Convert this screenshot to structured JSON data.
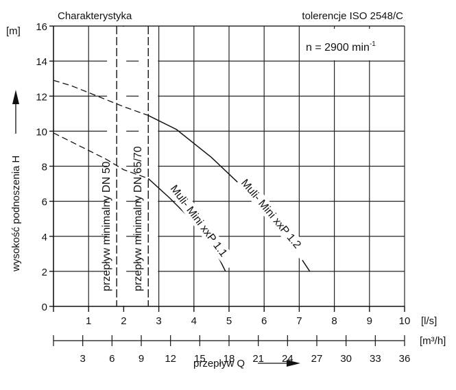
{
  "chart_data": {
    "type": "line",
    "title": "Charakterystyka",
    "tolerance_note": "tolerencje ISO 2548/C",
    "speed_label": "n = 2900 min",
    "speed_exponent": "-1",
    "ylabel": "wysokość podnoszenia H",
    "y_unit": "[m]",
    "xlabel": "przepływ Q",
    "x_unit": "[l/s]",
    "x2_unit": "[m³/h]",
    "xlim": [
      0,
      10
    ],
    "ylim": [
      0,
      16
    ],
    "x_ticks": [
      "1",
      "2",
      "3",
      "4",
      "5",
      "6",
      "7",
      "8",
      "9",
      "10"
    ],
    "y_ticks": [
      "0",
      "2",
      "4",
      "6",
      "8",
      "10",
      "12",
      "14",
      "16"
    ],
    "x2_ticks": [
      "3",
      "6",
      "9",
      "12",
      "15",
      "18",
      "21",
      "24",
      "27",
      "30",
      "33",
      "36"
    ],
    "grid": true,
    "vertical_markers": [
      {
        "label": "przepływ minimalny DN 50",
        "x": 1.8
      },
      {
        "label": "przepływ minimalny DN 65/70",
        "x": 2.7
      }
    ],
    "series": [
      {
        "name": "Muli- Mini xxP 1.1",
        "dashed_segment": [
          [
            0,
            9.9
          ],
          [
            0.5,
            9.4
          ],
          [
            1.0,
            8.9
          ],
          [
            1.5,
            8.4
          ],
          [
            2.0,
            7.8
          ],
          [
            2.7,
            7.3
          ]
        ],
        "solid_segment": [
          [
            2.7,
            7.3
          ],
          [
            3.3,
            6.2
          ],
          [
            4.0,
            4.8
          ],
          [
            4.5,
            3.6
          ],
          [
            4.9,
            2.0
          ]
        ]
      },
      {
        "name": "Muli- Mini xxP 1.2",
        "dashed_segment": [
          [
            0,
            12.9
          ],
          [
            0.5,
            12.6
          ],
          [
            1.0,
            12.2
          ],
          [
            1.5,
            11.8
          ],
          [
            2.0,
            11.4
          ],
          [
            2.7,
            10.9
          ]
        ],
        "solid_segment": [
          [
            2.7,
            10.9
          ],
          [
            3.5,
            10.1
          ],
          [
            4.5,
            8.5
          ],
          [
            5.5,
            6.6
          ],
          [
            6.5,
            4.4
          ],
          [
            7.3,
            2.0
          ]
        ]
      }
    ]
  }
}
